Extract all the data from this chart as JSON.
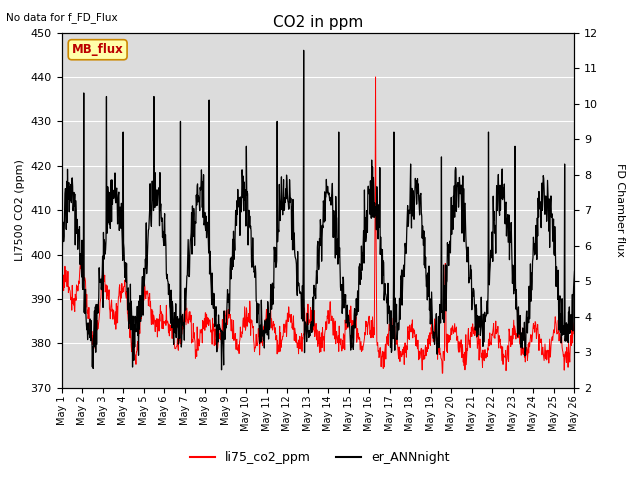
{
  "title": "CO2 in ppm",
  "top_left_text": "No data for f_FD_Flux",
  "ylabel_left": "LI7500 CO2 (ppm)",
  "ylabel_right": "FD Chamber flux",
  "ylim_left": [
    370,
    450
  ],
  "ylim_right": [
    2.0,
    12.0
  ],
  "yticks_left": [
    370,
    380,
    390,
    400,
    410,
    420,
    430,
    440,
    450
  ],
  "yticks_right": [
    2.0,
    3.0,
    4.0,
    5.0,
    6.0,
    7.0,
    8.0,
    9.0,
    10.0,
    11.0,
    12.0
  ],
  "legend_labels": [
    "li75_co2_ppm",
    "er_ANNnight"
  ],
  "line1_color": "#FF0000",
  "line2_color": "#000000",
  "background_color": "#DCDCDC",
  "mb_flux_box_facecolor": "#FFFFAA",
  "mb_flux_box_edgecolor": "#CC8800",
  "mb_flux_text_color": "#BB0000",
  "mb_flux_label": "MB_flux",
  "title_fontsize": 11,
  "label_fontsize": 8,
  "tick_fontsize": 8,
  "figsize": [
    6.4,
    4.8
  ],
  "dpi": 100
}
